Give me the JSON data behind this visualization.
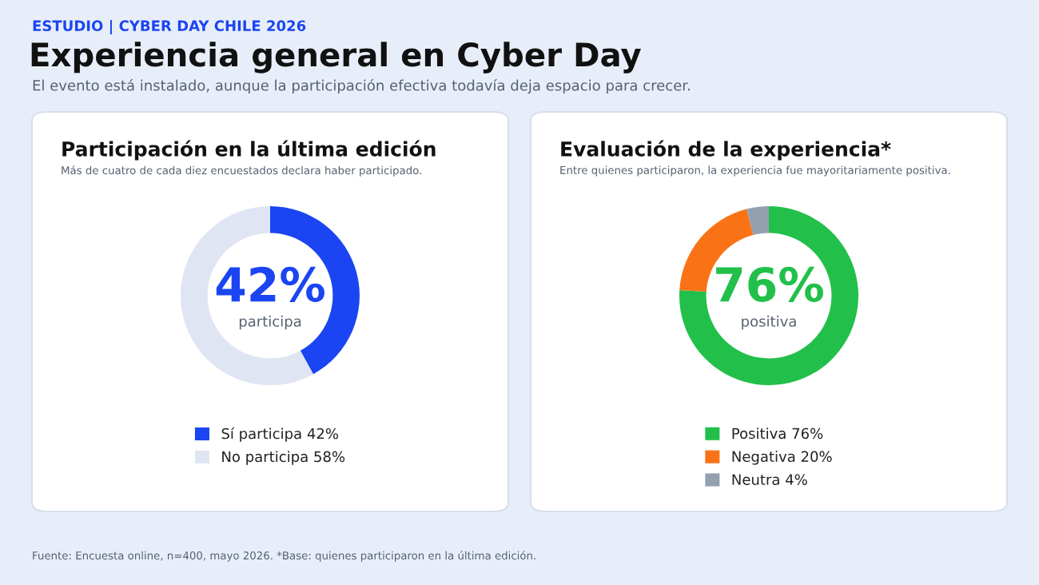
{
  "chart_data": [
    {
      "type": "donut",
      "title": "Participación en la última edición",
      "subtitle": "Más de cuatro de cada diez encuestados declara haber participado.",
      "categories": [
        "Sí participa 42%",
        "No participa 58%"
      ],
      "values": [
        42,
        58
      ],
      "colors": [
        "#1b45f2",
        "#dfe5f2"
      ],
      "legend": "bottom",
      "annotations": [
        "ESTUDIO | CYBER DAY CHILE 2026",
        "Experiencia general en Cyber Day",
        "El evento está instalado, aunque la participación efectiva todavía deja espacio para crecer.",
        "Fuente: Encuesta online, n=400, mayo 2026. *Base: quienes participaron en la última edición.",
        "42%",
        "participa"
      ]
    },
    {
      "type": "donut",
      "title": "Evaluación de la experiencia*",
      "subtitle": "Entre quienes participaron, la experiencia fue mayoritariamente positiva.",
      "categories": [
        "Positiva 76%",
        "Negativa 20%",
        "Neutra 4%"
      ],
      "values": [
        76,
        20,
        4
      ],
      "colors": [
        "#22c04a",
        "#f97316",
        "#94a0b0"
      ],
      "legend": "bottom",
      "annotations": [
        "76%",
        "positiva"
      ]
    }
  ]
}
